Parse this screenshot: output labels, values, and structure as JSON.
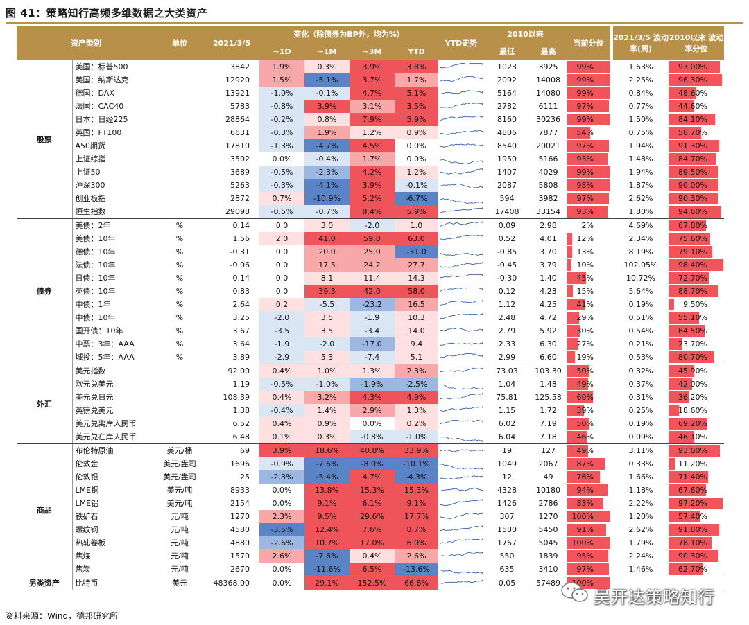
{
  "title": "图 41：策略知行高频多维数据之大类资产",
  "source": "资料来源：Wind，德邦研究所",
  "watermark": "吴开达策略知行",
  "header": {
    "category": "资产类别",
    "unit": "单位",
    "date": "2021/3/5",
    "change_group": "变化（除债券为BP外，均为%）",
    "d1": "~1D",
    "m1": "~1M",
    "m3": "~3M",
    "ytd": "YTD",
    "ytd_trend": "YTD走势",
    "since2010": "2010以来",
    "low": "最低",
    "high": "最高",
    "current_pct": "当前分位",
    "vol_week": "2021/3/5 波动率(周)",
    "vol_pct": "2010以来 波动率分位"
  },
  "colors": {
    "header_bg": "#b8904a",
    "bar": "#f2545b",
    "up_strong": "#f0545b",
    "up_mid": "#f8a8a8",
    "up_light": "#fde0df",
    "down_strong": "#5b84c6",
    "down_mid": "#9cb8e2",
    "down_light": "#dbe6f5"
  },
  "groups": [
    {
      "name": "股票",
      "rows": [
        {
          "name": "美国：标普500",
          "unit": "",
          "value": "3842",
          "d1": "1.9%",
          "m1": "0.3%",
          "m3": "3.9%",
          "ytd": "3.8%",
          "low": "1023",
          "high": "3925",
          "pct": "99%",
          "vol": "1.63%",
          "vpct": "93.00%"
        },
        {
          "name": "美国：纳斯达克",
          "unit": "",
          "value": "12920",
          "d1": "1.5%",
          "m1": "-5.1%",
          "m3": "3.7%",
          "ytd": "1.7%",
          "low": "2092",
          "high": "14008",
          "pct": "99%",
          "vol": "2.25%",
          "vpct": "96.30%"
        },
        {
          "name": "德国：DAX",
          "unit": "",
          "value": "13921",
          "d1": "-1.0%",
          "m1": "-0.1%",
          "m3": "4.7%",
          "ytd": "5.1%",
          "low": "5164",
          "high": "14080",
          "pct": "99%",
          "vol": "0.84%",
          "vpct": "48.60%"
        },
        {
          "name": "法国：CAC40",
          "unit": "",
          "value": "5783",
          "d1": "-0.8%",
          "m1": "3.9%",
          "m3": "3.1%",
          "ytd": "3.5%",
          "low": "2782",
          "high": "6111",
          "pct": "97%",
          "vol": "0.77%",
          "vpct": "44.60%"
        },
        {
          "name": "日本：日经225",
          "unit": "",
          "value": "28864",
          "d1": "-0.2%",
          "m1": "0.8%",
          "m3": "7.9%",
          "ytd": "5.9%",
          "low": "8160",
          "high": "30236",
          "pct": "99%",
          "vol": "1.50%",
          "vpct": "84.10%"
        },
        {
          "name": "英国：FT100",
          "unit": "",
          "value": "6631",
          "d1": "-0.3%",
          "m1": "1.9%",
          "m3": "1.2%",
          "ytd": "0.9%",
          "low": "4806",
          "high": "7877",
          "pct": "54%",
          "vol": "0.75%",
          "vpct": "58.70%"
        },
        {
          "name": "A50期货",
          "unit": "",
          "value": "17810",
          "d1": "-1.3%",
          "m1": "-4.7%",
          "m3": "4.5%",
          "ytd": "0.0%",
          "low": "8540",
          "high": "20021",
          "pct": "97%",
          "vol": "1.94%",
          "vpct": "91.30%"
        },
        {
          "name": "上证综指",
          "unit": "",
          "value": "3502",
          "d1": "0.0%",
          "m1": "-0.4%",
          "m3": "1.7%",
          "ytd": "0.0%",
          "low": "1950",
          "high": "5166",
          "pct": "93%",
          "vol": "1.48%",
          "vpct": "84.70%"
        },
        {
          "name": "上证50",
          "unit": "",
          "value": "3689",
          "d1": "-0.5%",
          "m1": "-2.3%",
          "m3": "4.2%",
          "ytd": "1.2%",
          "low": "1407",
          "high": "4029",
          "pct": "99%",
          "vol": "1.94%",
          "vpct": "89.50%"
        },
        {
          "name": "沪深300",
          "unit": "",
          "value": "5263",
          "d1": "-0.3%",
          "m1": "-4.1%",
          "m3": "3.9%",
          "ytd": "-0.1%",
          "low": "2087",
          "high": "5808",
          "pct": "98%",
          "vol": "1.87%",
          "vpct": "90.00%"
        },
        {
          "name": "创业板指",
          "unit": "",
          "value": "2872",
          "d1": "0.7%",
          "m1": "-10.9%",
          "m3": "5.2%",
          "ytd": "-6.7%",
          "low": "594",
          "high": "3982",
          "pct": "97%",
          "vol": "2.62%",
          "vpct": "90.30%"
        },
        {
          "name": "恒生指数",
          "unit": "",
          "value": "29098",
          "d1": "-0.5%",
          "m1": "-0.7%",
          "m3": "8.4%",
          "ytd": "5.9%",
          "low": "17408",
          "high": "33154",
          "pct": "93%",
          "vol": "1.80%",
          "vpct": "94.60%"
        }
      ]
    },
    {
      "name": "债券",
      "rows": [
        {
          "name": "美债：2年",
          "unit": "%",
          "value": "0.14",
          "d1": "0.0",
          "m1": "3.0",
          "m3": "-2.0",
          "ytd": "1.0",
          "low": "0.09",
          "high": "2.98",
          "pct": "2%",
          "vol": "4.69%",
          "vpct": "67.80%"
        },
        {
          "name": "美债：10年",
          "unit": "%",
          "value": "1.56",
          "d1": "2.0",
          "m1": "41.0",
          "m3": "59.0",
          "ytd": "63.0",
          "low": "0.52",
          "high": "4.01",
          "pct": "12%",
          "vol": "2.34%",
          "vpct": "75.60%"
        },
        {
          "name": "德债：10年",
          "unit": "%",
          "value": "-0.31",
          "d1": "0.0",
          "m1": "20.0",
          "m3": "25.0",
          "ytd": "-31.0",
          "low": "-0.85",
          "high": "3.70",
          "pct": "13%",
          "vol": "8.19%",
          "vpct": "79.10%"
        },
        {
          "name": "法债：10年",
          "unit": "%",
          "value": "-0.06",
          "d1": "0.0",
          "m1": "17.5",
          "m3": "24.2",
          "ytd": "27.7",
          "low": "-0.45",
          "high": "3.79",
          "pct": "10%",
          "vol": "102.05%",
          "vpct": "98.40%"
        },
        {
          "name": "日债：10年",
          "unit": "%",
          "value": "0.14",
          "d1": "0.0",
          "m1": "8.1",
          "m3": "11.4",
          "ytd": "14.3",
          "low": "-0.30",
          "high": "1.40",
          "pct": "45%",
          "vol": "10.72%",
          "vpct": "72.70%"
        },
        {
          "name": "英债：10年",
          "unit": "%",
          "value": "0.83",
          "d1": "0.0",
          "m1": "39.3",
          "m3": "42.0",
          "ytd": "58.0",
          "low": "0.12",
          "high": "4.23",
          "pct": "15%",
          "vol": "5.64%",
          "vpct": "88.70%"
        },
        {
          "name": "中债：1年",
          "unit": "%",
          "value": "2.64",
          "d1": "0.2",
          "m1": "-5.5",
          "m3": "-23.2",
          "ytd": "16.5",
          "low": "1.12",
          "high": "4.25",
          "pct": "41%",
          "vol": "0.19%",
          "vpct": "9.50%"
        },
        {
          "name": "中债：10年",
          "unit": "%",
          "value": "3.25",
          "d1": "-2.0",
          "m1": "3.5",
          "m3": "-1.9",
          "ytd": "10.3",
          "low": "2.48",
          "high": "4.72",
          "pct": "29%",
          "vol": "0.51%",
          "vpct": "55.10%"
        },
        {
          "name": "国开债：10年",
          "unit": "%",
          "value": "3.67",
          "d1": "-3.5",
          "m1": "3.5",
          "m3": "-3.4",
          "ytd": "14.0",
          "low": "2.79",
          "high": "5.92",
          "pct": "30%",
          "vol": "0.54%",
          "vpct": "64.50%"
        },
        {
          "name": "中票：3年：AAA",
          "unit": "%",
          "value": "3.64",
          "d1": "-1.9",
          "m1": "-2.0",
          "m3": "-17.0",
          "ytd": "9.4",
          "low": "2.33",
          "high": "6.30",
          "pct": "27%",
          "vol": "0.21%",
          "vpct": "23.70%"
        },
        {
          "name": "城投：5年：AAA",
          "unit": "%",
          "value": "3.89",
          "d1": "-2.9",
          "m1": "5.3",
          "m3": "-7.4",
          "ytd": "5.1",
          "low": "2.99",
          "high": "6.60",
          "pct": "19%",
          "vol": "0.53%",
          "vpct": "80.70%"
        }
      ]
    },
    {
      "name": "外汇",
      "rows": [
        {
          "name": "美元指数",
          "unit": "",
          "value": "92.00",
          "d1": "0.4%",
          "m1": "1.0%",
          "m3": "1.3%",
          "ytd": "2.3%",
          "low": "73.03",
          "high": "103.30",
          "pct": "50%",
          "vol": "0.32%",
          "vpct": "45.90%"
        },
        {
          "name": "欧元兑美元",
          "unit": "",
          "value": "1.19",
          "d1": "-0.5%",
          "m1": "-1.0%",
          "m3": "-1.9%",
          "ytd": "-2.5%",
          "low": "1.04",
          "high": "1.48",
          "pct": "49%",
          "vol": "0.37%",
          "vpct": "42.00%"
        },
        {
          "name": "美元兑日元",
          "unit": "",
          "value": "108.39",
          "d1": "0.4%",
          "m1": "3.2%",
          "m3": "4.3%",
          "ytd": "4.9%",
          "low": "75.81",
          "high": "125.58",
          "pct": "60%",
          "vol": "0.31%",
          "vpct": "36.20%"
        },
        {
          "name": "英镑兑美元",
          "unit": "",
          "value": "1.38",
          "d1": "-0.4%",
          "m1": "1.4%",
          "m3": "2.9%",
          "ytd": "1.3%",
          "low": "1.15",
          "high": "1.72",
          "pct": "39%",
          "vol": "0.25%",
          "vpct": "18.60%"
        },
        {
          "name": "美元兑离岸人民币",
          "unit": "",
          "value": "6.52",
          "d1": "0.4%",
          "m1": "0.9%",
          "m3": "0.0%",
          "ytd": "0.2%",
          "low": "6.02",
          "high": "7.19",
          "pct": "50%",
          "vol": "0.19%",
          "vpct": "69.20%"
        },
        {
          "name": "美元兑在岸人民币",
          "unit": "",
          "value": "6.48",
          "d1": "0.1%",
          "m1": "0.3%",
          "m3": "-0.8%",
          "ytd": "-1.0%",
          "low": "6.04",
          "high": "7.18",
          "pct": "46%",
          "vol": "0.09%",
          "vpct": "46.10%"
        }
      ]
    },
    {
      "name": "商品",
      "rows": [
        {
          "name": "布伦特原油",
          "unit": "美元/桶",
          "value": "69",
          "d1": "3.9%",
          "m1": "18.6%",
          "m3": "40.8%",
          "ytd": "33.9%",
          "low": "19",
          "high": "127",
          "pct": "49%",
          "vol": "3.11%",
          "vpct": "93.00%"
        },
        {
          "name": "伦敦金",
          "unit": "美元/盎司",
          "value": "1696",
          "d1": "-0.9%",
          "m1": "-7.6%",
          "m3": "-8.0%",
          "ytd": "-10.1%",
          "low": "1049",
          "high": "2067",
          "pct": "87%",
          "vol": "0.33%",
          "vpct": "11.20%"
        },
        {
          "name": "伦敦银",
          "unit": "美元/盎司",
          "value": "25",
          "d1": "-2.3%",
          "m1": "-5.4%",
          "m3": "4.7%",
          "ytd": "-4.3%",
          "low": "12",
          "high": "49",
          "pct": "76%",
          "vol": "1.66%",
          "vpct": "71.40%"
        },
        {
          "name": "LME铜",
          "unit": "美元/吨",
          "value": "8933",
          "d1": "0.0%",
          "m1": "13.8%",
          "m3": "15.3%",
          "ytd": "15.3%",
          "low": "4328",
          "high": "10180",
          "pct": "94%",
          "vol": "1.18%",
          "vpct": "67.60%"
        },
        {
          "name": "LME铝",
          "unit": "美元/吨",
          "value": "2154",
          "d1": "0.0%",
          "m1": "9.1%",
          "m3": "6.1%",
          "ytd": "9.1%",
          "low": "1426",
          "high": "2786",
          "pct": "83%",
          "vol": "2.22%",
          "vpct": "97.20%"
        },
        {
          "name": "铁矿石",
          "unit": "元/吨",
          "value": "1270",
          "d1": "2.3%",
          "m1": "9.5%",
          "m3": "29.6%",
          "ytd": "17.7%",
          "low": "307",
          "high": "1270",
          "pct": "100%",
          "vol": "1.20%",
          "vpct": "57.40%"
        },
        {
          "name": "螺纹钢",
          "unit": "元/吨",
          "value": "4580",
          "d1": "-3.5%",
          "m1": "12.4%",
          "m3": "7.6%",
          "ytd": "8.7%",
          "low": "1580",
          "high": "5450",
          "pct": "91%",
          "vol": "2.62%",
          "vpct": "91.80%"
        },
        {
          "name": "热轧卷板",
          "unit": "元/吨",
          "value": "4880",
          "d1": "-2.6%",
          "m1": "10.7%",
          "m3": "17.0%",
          "ytd": "6.0%",
          "low": "1767",
          "high": "5045",
          "pct": "100%",
          "vol": "1.79%",
          "vpct": "78.10%"
        },
        {
          "name": "焦煤",
          "unit": "元/吨",
          "value": "1570",
          "d1": "2.6%",
          "m1": "-7.6%",
          "m3": "0.4%",
          "ytd": "2.6%",
          "low": "550",
          "high": "1839",
          "pct": "95%",
          "vol": "2.24%",
          "vpct": "90.30%"
        },
        {
          "name": "焦炭",
          "unit": "元/吨",
          "value": "2670",
          "d1": "0.0%",
          "m1": "-11.6%",
          "m3": "6.5%",
          "ytd": "-13.6%",
          "low": "635",
          "high": "3410",
          "pct": "97%",
          "vol": "1.46%",
          "vpct": "62.70%"
        }
      ]
    },
    {
      "name": "另类资产",
      "rows": [
        {
          "name": "比特币",
          "unit": "美元",
          "value": "48368.00",
          "d1": "0.0%",
          "m1": "29.1%",
          "m3": "152.5%",
          "ytd": "66.8%",
          "low": "0.05",
          "high": "57489",
          "pct": "100%",
          "vol": "",
          "vpct": ""
        }
      ]
    }
  ]
}
